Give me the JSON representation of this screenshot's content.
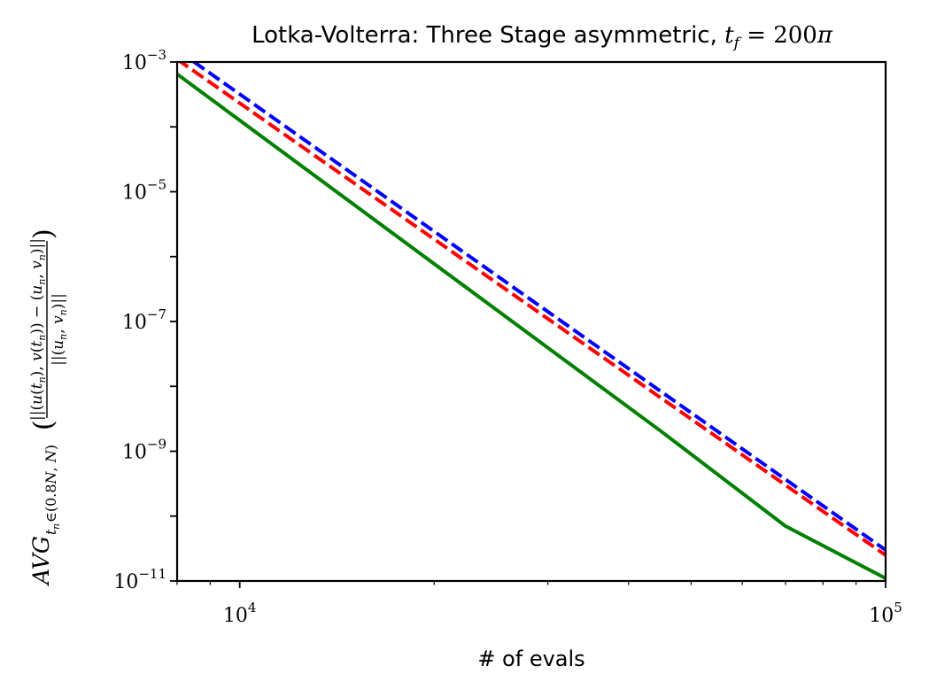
{
  "chart_data": {
    "type": "line",
    "title": "Lotka-Volterra: Three Stage asymmetric, t_f = 200π",
    "xlabel": "# of evals",
    "ylabel": "AVG_{t_n ∈ (0.8N, N)}( ||(u(t_n), v(t_n)) − (u_n, v_n)|| / ||(u_n, v_n)|| )",
    "xscale": "log",
    "yscale": "log",
    "xlim": [
      8000,
      100000
    ],
    "ylim": [
      1e-11,
      0.001
    ],
    "x_ticks": [
      {
        "value": 10000,
        "label": "10^4"
      },
      {
        "value": 100000,
        "label": "10^5"
      }
    ],
    "y_ticks": [
      {
        "value": 1e-11,
        "label": "10^−11"
      },
      {
        "value": 1e-09,
        "label": "10^−9"
      },
      {
        "value": 1e-07,
        "label": "10^−7"
      },
      {
        "value": 1e-05,
        "label": "10^−5"
      },
      {
        "value": 0.001,
        "label": "10^−3"
      }
    ],
    "grid": false,
    "legend": "none",
    "series": [
      {
        "color": "#0000ff",
        "style": "dashed",
        "x": [
          8000,
          8500,
          100000
        ],
        "y": [
          0.0014,
          0.001,
          3e-11
        ]
      },
      {
        "color": "#ff0000",
        "style": "dashed",
        "x": [
          8000,
          100000
        ],
        "y": [
          0.0011,
          2.5e-11
        ]
      },
      {
        "color": "#008000",
        "style": "solid",
        "x": [
          8000,
          45000,
          70000,
          100000
        ],
        "y": [
          0.00065,
          2e-09,
          7e-11,
          1.1e-11
        ]
      }
    ]
  }
}
